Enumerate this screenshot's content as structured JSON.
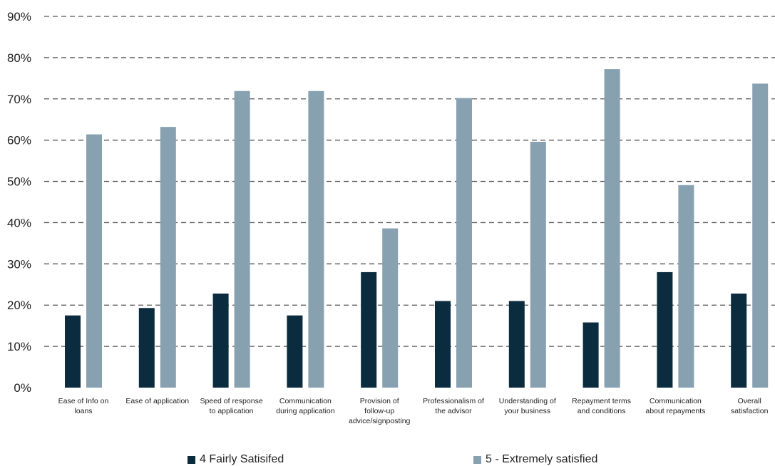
{
  "chart_data": {
    "type": "bar",
    "categories": [
      [
        "Ease of Info on",
        "loans"
      ],
      [
        "Ease of application"
      ],
      [
        "Speed of response",
        "to application"
      ],
      [
        "Communication",
        "during application"
      ],
      [
        "Provision of",
        "follow-up",
        "advice/signposting"
      ],
      [
        "Professionalism of",
        "the advisor"
      ],
      [
        "Understanding of",
        "your business"
      ],
      [
        "Repayment terms",
        "and conditions"
      ],
      [
        "Communication",
        "about repayments"
      ],
      [
        "Overall",
        "satisfaction"
      ]
    ],
    "series": [
      {
        "name": "4 Fairly Satisifed",
        "color": "#0b2b3f",
        "values": [
          17.5,
          19.3,
          22.8,
          17.5,
          28.0,
          21.0,
          21.0,
          15.8,
          28.0,
          22.8
        ]
      },
      {
        "name": "5 - Extremely satisfied",
        "color": "#87a1b0",
        "values": [
          61.4,
          63.2,
          71.9,
          71.9,
          38.6,
          70.2,
          59.6,
          77.2,
          49.1,
          73.7
        ]
      }
    ],
    "ylim": [
      0,
      90
    ],
    "yticks": [
      "0%",
      "10%",
      "20%",
      "30%",
      "40%",
      "50%",
      "60%",
      "70%",
      "80%",
      "90%"
    ],
    "grid": true,
    "legend_position": "bottom"
  }
}
